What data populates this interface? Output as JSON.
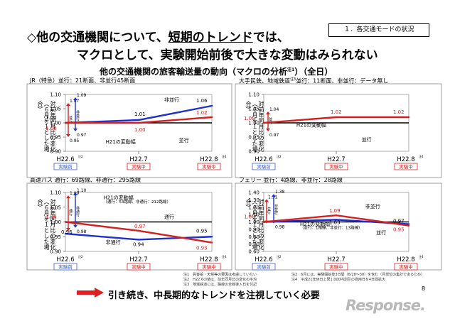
{
  "header": {
    "line1_prefix": "◇他の交通機関について、",
    "line1_underlined": "短期のトレンド",
    "line1_suffix": "では、",
    "line2": "マクロとして、実験開始前後で大きな変動はみられない",
    "badge": "１．各交通モードの状況",
    "subtitle": "他の交通機関の旅客輸送量の動向（マクロの分析",
    "subtitle_sup": "注1",
    "subtitle_tail": "）（全日）"
  },
  "common": {
    "ylabel_lines": [
      "対前年同月比の変化",
      "（６月を１とした場合）"
    ],
    "period_before": "実験前",
    "period_during": "実験中",
    "x_sup": [
      "注2",
      "",
      "注4"
    ],
    "colors": {
      "red": "#d42020",
      "blue": "#1c2fd0",
      "black": "#000000",
      "box_border": "#8a8a8a"
    }
  },
  "chart_data": [
    {
      "type": "line",
      "header": "JR（特急）並行：21断面、非並行45断面",
      "header_sup": "",
      "x": [
        "H22.6",
        "H22.7",
        "H22.8"
      ],
      "ylim": [
        0.9,
        1.1
      ],
      "yticks": [
        "1.10",
        "1.05",
        "1.00",
        "0.95",
        "0.90"
      ],
      "series": [
        {
          "name": "非並行",
          "color": "#1c2fd0",
          "values": [
            1.0,
            1.01,
            1.06
          ]
        },
        {
          "name": "並行",
          "color": "#d42020",
          "values": [
            1.0,
            1.0,
            1.02
          ]
        }
      ],
      "data_labels": [
        {
          "text": "1.00",
          "i": 0,
          "v": 1.0,
          "color": "#000000",
          "dx": -28,
          "dy": -5
        },
        {
          "text": "1.00",
          "i": 0,
          "v": 1.0,
          "color": "#d42020",
          "dx": -28,
          "dy": 10
        },
        {
          "text": "1.01",
          "i": 1,
          "v": 1.01,
          "color": "#000000",
          "dx": -6,
          "dy": -6
        },
        {
          "text": "1.00",
          "i": 1,
          "v": 1.0,
          "color": "#d42020",
          "dx": -6,
          "dy": 12
        },
        {
          "text": "1.06",
          "i": 2,
          "v": 1.06,
          "color": "#000000",
          "dx": -22,
          "dy": -5
        },
        {
          "text": "1.02",
          "i": 2,
          "v": 1.02,
          "color": "#d42020",
          "dx": -22,
          "dy": -4
        }
      ],
      "annotations": [
        {
          "text": "非並行",
          "i": 1.35,
          "v": 1.075
        },
        {
          "text": "並行",
          "i": 1.55,
          "v": 0.932
        },
        {
          "text": "H21の変動幅",
          "i": 0.55,
          "v": 0.928
        }
      ],
      "bars": [
        {
          "color": "#d42020",
          "from": 0.95,
          "to": 1.07,
          "top_label": "1.07",
          "bottom_label": "0.95",
          "caption": "並行",
          "offset": 4
        },
        {
          "color": "#1c2fd0",
          "from": 0.97,
          "to": 1.09,
          "top_label": "1.09",
          "bottom_label": "0.97",
          "caption": "非並行",
          "offset": 14
        }
      ]
    },
    {
      "type": "line",
      "header": "大手民鉄、地域鉄道",
      "header_sup": "注3",
      "header_tail": "並行：11断面、非並行：データ無し",
      "x": [
        "H22.6",
        "H22.7",
        "H22.8"
      ],
      "ylim": [
        0.9,
        1.1
      ],
      "yticks": [
        "1.10",
        "1.05",
        "1.00",
        "0.95",
        "0.90"
      ],
      "series": [
        {
          "name": "並行",
          "color": "#d42020",
          "values": [
            1.0,
            1.02,
            1.02
          ]
        }
      ],
      "data_labels": [
        {
          "text": "1.00",
          "i": 0,
          "v": 1.0,
          "color": "#d42020",
          "dx": -28,
          "dy": -4
        },
        {
          "text": "1.02",
          "i": 1,
          "v": 1.02,
          "color": "#d42020",
          "dx": -8,
          "dy": -5
        },
        {
          "text": "1.02",
          "i": 2,
          "v": 1.02,
          "color": "#d42020",
          "dx": -22,
          "dy": -5
        }
      ],
      "annotations": [
        {
          "text": "並行",
          "i": 1.35,
          "v": 0.935
        },
        {
          "text": "H21の変動幅",
          "i": 0.45,
          "v": 0.986
        }
      ],
      "bars": [
        {
          "color": "#d42020",
          "from": 0.97,
          "to": 1.04,
          "top_label": "1.04",
          "bottom_label": "0.97",
          "caption": "並行",
          "offset": 6
        }
      ]
    },
    {
      "type": "line",
      "header": "高速バス 通行：69路線、非通行：295路線",
      "header_sup": "",
      "x": [
        "H22.6",
        "H22.7",
        "H22.8"
      ],
      "ylim": [
        0.9,
        1.1
      ],
      "yticks": [
        "1.10",
        "1.05",
        "1.00",
        "0.95",
        "0.90"
      ],
      "series": [
        {
          "name": "非通行",
          "color": "#1c2fd0",
          "values": [
            0.96,
            0.94,
            0.95
          ]
        },
        {
          "name": "通行",
          "color": "#d42020",
          "values": [
            1.0,
            0.97,
            0.93
          ]
        }
      ],
      "data_labels": [
        {
          "text": "1.00",
          "i": 0,
          "v": 1.0,
          "color": "#d42020",
          "dx": -28,
          "dy": -5
        },
        {
          "text": "0.96",
          "i": 0,
          "v": 0.96,
          "color": "#000000",
          "dx": -6,
          "dy": 0
        },
        {
          "text": "0.97",
          "i": 1,
          "v": 0.97,
          "color": "#d42020",
          "dx": -6,
          "dy": -4
        },
        {
          "text": "0.94",
          "i": 1,
          "v": 0.94,
          "color": "#000000",
          "dx": -8,
          "dy": 9
        },
        {
          "text": "0.95",
          "i": 2,
          "v": 0.95,
          "color": "#000000",
          "dx": -22,
          "dy": -6
        },
        {
          "text": "0.93",
          "i": 2,
          "v": 0.93,
          "color": "#d42020",
          "dx": -22,
          "dy": 10
        }
      ],
      "annotations": [
        {
          "text": "通行",
          "i": 1.35,
          "v": 1.012
        },
        {
          "text": "非通行",
          "i": 0.55,
          "v": 0.925
        },
        {
          "text": "H21の変動幅",
          "i": 0.52,
          "v": 1.077
        },
        {
          "text": "（通行：53路線、非通行：212路線）",
          "i": 0.52,
          "v": 1.064
        }
      ],
      "bars": [
        {
          "color": "#d42020",
          "from": 0.97,
          "to": 1.09,
          "top_label": "1.09",
          "bottom_label": "",
          "caption": "通行",
          "offset": 4
        },
        {
          "color": "#1c2fd0",
          "from": 0.98,
          "to": 1.1,
          "top_label": "1.10",
          "bottom_label": "0.98",
          "caption": "非通行",
          "offset": 14
        }
      ]
    },
    {
      "type": "line",
      "header": "フェリー",
      "header_sup": "",
      "header_tail": "並行：4路線、非並行：28路線",
      "x": [
        "H22.6",
        "H22.7",
        "H22.8"
      ],
      "ylim": [
        0.6,
        1.4
      ],
      "yticks": [
        "1.40",
        "1.30",
        "1.20",
        "1.10",
        "1.00",
        "0.90",
        "0.80",
        "0.70",
        "0.60"
      ],
      "series": [
        {
          "name": "非並行",
          "color": "#1c2fd0",
          "values": [
            1.0,
            1.03,
            0.97
          ]
        },
        {
          "name": "並行",
          "color": "#d42020",
          "values": [
            1.0,
            1.09,
            0.95
          ]
        }
      ],
      "data_labels": [
        {
          "text": "1.00",
          "i": 0,
          "v": 1.0,
          "color": "#d42020",
          "dx": -28,
          "dy": -5
        },
        {
          "text": "1.09",
          "i": 1,
          "v": 1.09,
          "color": "#d42020",
          "dx": -10,
          "dy": -4
        },
        {
          "text": "1.03",
          "i": 1,
          "v": 1.03,
          "color": "#000000",
          "dx": -10,
          "dy": 6
        },
        {
          "text": "0.97",
          "i": 2,
          "v": 0.97,
          "color": "#000000",
          "dx": -22,
          "dy": -2
        },
        {
          "text": "0.95",
          "i": 2,
          "v": 0.95,
          "color": "#d42020",
          "dx": -22,
          "dy": 8
        }
      ],
      "annotations": [
        {
          "text": "非並行",
          "i": 1.4,
          "v": 1.19
        },
        {
          "text": "並行",
          "i": 1.55,
          "v": 0.83
        },
        {
          "text": "H21の変動幅",
          "i": 0.5,
          "v": 0.945
        },
        {
          "text": "（並行：1路線、非並行：13路線）",
          "i": 0.5,
          "v": 0.905
        }
      ],
      "bars": [
        {
          "color": "#d42020",
          "from": 0.98,
          "to": 1.31,
          "top_label": "1.31",
          "bottom_label": "",
          "caption": "並行",
          "offset": 4
        },
        {
          "color": "#1c2fd0",
          "from": 0.98,
          "to": 1.38,
          "top_label": "1.38",
          "bottom_label": "0.98",
          "caption": "非並行",
          "offset": 14
        }
      ]
    }
  ],
  "notes": {
    "col1": [
      "注1　貨客船・天候等の要因は考慮していない",
      "注2　H22.6の値は、前年同月比の変化の平均",
      "注3　地域鉄道には、路線の全線導入日を付記"
    ],
    "col2": [
      "注2　6月には、実験開始後3日間（6/28〜30）を含む（月単位の集計であるため）",
      "注4　平成21年休日上限1,000円割引の適用日を4日間拡大"
    ]
  },
  "footer": {
    "message": "引き続き、中長期的なトレンドを注視していく必要",
    "page": "8",
    "logo": "Response."
  }
}
